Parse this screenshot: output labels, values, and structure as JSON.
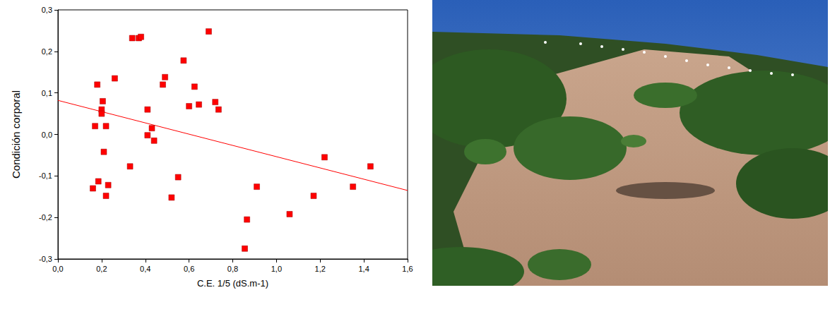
{
  "chart_data": {
    "type": "scatter",
    "xlabel": "C.E. 1/5 (dS.m-1)",
    "ylabel": "Condición corporal",
    "xlim": [
      0,
      1.6
    ],
    "xticks": [
      {
        "value": 0,
        "label": "0,0"
      },
      {
        "value": 0.2,
        "label": "0,2"
      },
      {
        "value": 0.4,
        "label": "0,4"
      },
      {
        "value": 0.6,
        "label": "0,6"
      },
      {
        "value": 0.8,
        "label": "0,8"
      },
      {
        "value": 1.0,
        "label": "1,0"
      },
      {
        "value": 1.2,
        "label": "1,2"
      },
      {
        "value": 1.4,
        "label": "1,4"
      },
      {
        "value": 1.6,
        "label": "1,6"
      }
    ],
    "ylim": [
      -0.3,
      0.3
    ],
    "yticks": [
      {
        "value": -0.3,
        "label": "-0,3"
      },
      {
        "value": -0.2,
        "label": "-0,2"
      },
      {
        "value": -0.1,
        "label": "-0,1"
      },
      {
        "value": 0,
        "label": "0,0"
      },
      {
        "value": 0.1,
        "label": "0,1"
      },
      {
        "value": 0.2,
        "label": "0,2"
      },
      {
        "value": 0.3,
        "label": "0,3"
      }
    ],
    "grid": false,
    "series": [
      {
        "type": "scatter",
        "marker": "square",
        "color": "#ff0000",
        "x": [
          0.16,
          0.17,
          0.18,
          0.185,
          0.2,
          0.2,
          0.205,
          0.21,
          0.22,
          0.22,
          0.23,
          0.26,
          0.33,
          0.34,
          0.37,
          0.38,
          0.41,
          0.41,
          0.43,
          0.44,
          0.48,
          0.49,
          0.52,
          0.55,
          0.575,
          0.6,
          0.625,
          0.645,
          0.69,
          0.72,
          0.735,
          0.855,
          0.865,
          0.91,
          1.06,
          1.17,
          1.22,
          1.35,
          1.43
        ],
        "values": [
          -0.13,
          0.02,
          0.12,
          -0.113,
          0.06,
          0.05,
          0.08,
          -0.042,
          0.02,
          -0.148,
          -0.122,
          0.135,
          -0.077,
          0.232,
          0.232,
          0.235,
          0.06,
          -0.002,
          0.015,
          -0.015,
          0.12,
          0.138,
          -0.152,
          -0.103,
          0.178,
          0.068,
          0.115,
          0.072,
          0.248,
          0.078,
          0.06,
          -0.275,
          -0.205,
          -0.126,
          -0.192,
          -0.148,
          -0.055,
          -0.126,
          -0.077
        ]
      },
      {
        "type": "line",
        "line_style": "solid",
        "color": "#ff0000",
        "x": [
          0,
          1.6
        ],
        "values": [
          0.082,
          -0.135
        ]
      }
    ]
  }
}
